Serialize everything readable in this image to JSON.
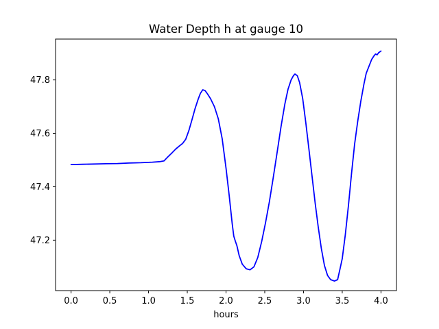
{
  "chart_data": {
    "type": "line",
    "title": "Water Depth h at gauge 10",
    "xlabel": "hours",
    "ylabel": "",
    "xlim": [
      -0.2,
      4.2
    ],
    "ylim": [
      47.011,
      47.953
    ],
    "xticks": [
      0.0,
      0.5,
      1.0,
      1.5,
      2.0,
      2.5,
      3.0,
      3.5,
      4.0
    ],
    "xtick_labels": [
      "0.0",
      "0.5",
      "1.0",
      "1.5",
      "2.0",
      "2.5",
      "3.0",
      "3.5",
      "4.0"
    ],
    "yticks": [
      47.2,
      47.4,
      47.6,
      47.8
    ],
    "ytick_labels": [
      "47.2",
      "47.4",
      "47.6",
      "47.8"
    ],
    "grid": false,
    "legend": null,
    "line_color": "#0000ff",
    "line_width": 1.8,
    "background_color": "#ffffff",
    "axes_color": "#000000",
    "series": [
      {
        "name": "water depth h at gauge 10",
        "points": [
          [
            0.0,
            47.483
          ],
          [
            0.15,
            47.484
          ],
          [
            0.3,
            47.485
          ],
          [
            0.45,
            47.486
          ],
          [
            0.6,
            47.487
          ],
          [
            0.75,
            47.489
          ],
          [
            0.9,
            47.49
          ],
          [
            1.05,
            47.492
          ],
          [
            1.15,
            47.494
          ],
          [
            1.2,
            47.497
          ],
          [
            1.25,
            47.512
          ],
          [
            1.3,
            47.526
          ],
          [
            1.35,
            47.541
          ],
          [
            1.4,
            47.553
          ],
          [
            1.44,
            47.562
          ],
          [
            1.48,
            47.578
          ],
          [
            1.52,
            47.61
          ],
          [
            1.56,
            47.65
          ],
          [
            1.6,
            47.692
          ],
          [
            1.64,
            47.727
          ],
          [
            1.67,
            47.75
          ],
          [
            1.7,
            47.763
          ],
          [
            1.73,
            47.76
          ],
          [
            1.76,
            47.748
          ],
          [
            1.8,
            47.73
          ],
          [
            1.85,
            47.7
          ],
          [
            1.9,
            47.655
          ],
          [
            1.95,
            47.58
          ],
          [
            2.0,
            47.47
          ],
          [
            2.04,
            47.37
          ],
          [
            2.08,
            47.262
          ],
          [
            2.1,
            47.215
          ],
          [
            2.12,
            47.196
          ],
          [
            2.14,
            47.18
          ],
          [
            2.17,
            47.142
          ],
          [
            2.21,
            47.11
          ],
          [
            2.26,
            47.093
          ],
          [
            2.31,
            47.089
          ],
          [
            2.36,
            47.1
          ],
          [
            2.41,
            47.135
          ],
          [
            2.46,
            47.195
          ],
          [
            2.51,
            47.265
          ],
          [
            2.56,
            47.345
          ],
          [
            2.61,
            47.435
          ],
          [
            2.66,
            47.53
          ],
          [
            2.71,
            47.625
          ],
          [
            2.76,
            47.71
          ],
          [
            2.8,
            47.765
          ],
          [
            2.84,
            47.8
          ],
          [
            2.87,
            47.816
          ],
          [
            2.89,
            47.822
          ],
          [
            2.92,
            47.816
          ],
          [
            2.95,
            47.79
          ],
          [
            2.99,
            47.73
          ],
          [
            3.03,
            47.64
          ],
          [
            3.07,
            47.54
          ],
          [
            3.11,
            47.44
          ],
          [
            3.15,
            47.34
          ],
          [
            3.19,
            47.25
          ],
          [
            3.23,
            47.17
          ],
          [
            3.27,
            47.105
          ],
          [
            3.31,
            47.068
          ],
          [
            3.35,
            47.052
          ],
          [
            3.4,
            47.047
          ],
          [
            3.44,
            47.052
          ],
          [
            3.47,
            47.09
          ],
          [
            3.5,
            47.13
          ],
          [
            3.54,
            47.22
          ],
          [
            3.58,
            47.33
          ],
          [
            3.62,
            47.45
          ],
          [
            3.66,
            47.56
          ],
          [
            3.7,
            47.645
          ],
          [
            3.74,
            47.72
          ],
          [
            3.78,
            47.785
          ],
          [
            3.81,
            47.825
          ],
          [
            3.85,
            47.855
          ],
          [
            3.88,
            47.877
          ],
          [
            3.91,
            47.89
          ],
          [
            3.93,
            47.897
          ],
          [
            3.95,
            47.894
          ],
          [
            3.97,
            47.902
          ],
          [
            4.0,
            47.908
          ]
        ]
      }
    ]
  }
}
